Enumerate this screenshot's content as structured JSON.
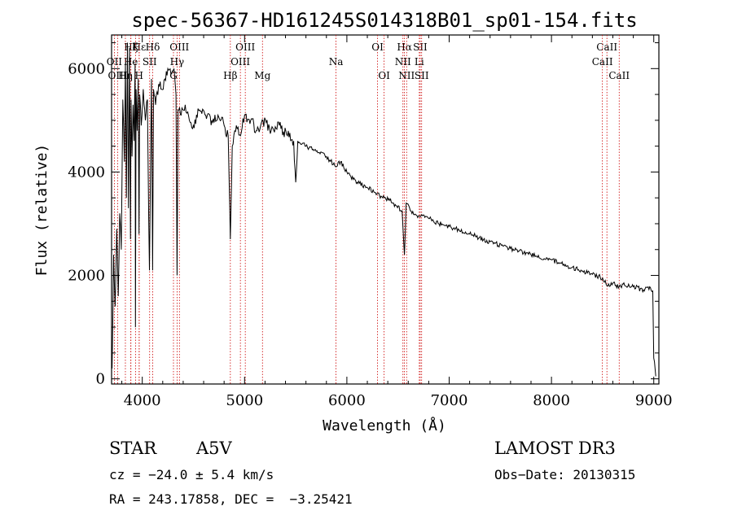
{
  "chart_data": {
    "type": "line",
    "title": "spec-56367-HD161245S014318B01_sp01-154.fits",
    "xlabel": "Wavelength (Å)",
    "ylabel": "Flux (relative)",
    "xlim": [
      3700,
      9050
    ],
    "ylim": [
      -100,
      6650
    ],
    "xticks": [
      4000,
      5000,
      6000,
      7000,
      8000,
      9000
    ],
    "yticks": [
      0,
      2000,
      4000,
      6000
    ],
    "grid": false,
    "line_color": "#000000",
    "marker_color": "#cc0000",
    "series": [
      {
        "name": "flux",
        "x": [
          3705,
          3720,
          3735,
          3750,
          3765,
          3780,
          3795,
          3810,
          3825,
          3835,
          3845,
          3855,
          3865,
          3875,
          3885,
          3890,
          3900,
          3910,
          3920,
          3930,
          3933,
          3940,
          3950,
          3960,
          3968,
          3975,
          3990,
          4010,
          4030,
          4050,
          4070,
          4090,
          4101,
          4110,
          4130,
          4160,
          4190,
          4220,
          4250,
          4280,
          4310,
          4330,
          4340,
          4350,
          4380,
          4420,
          4460,
          4500,
          4560,
          4620,
          4680,
          4740,
          4800,
          4840,
          4861,
          4880,
          4920,
          4960,
          5000,
          5060,
          5120,
          5180,
          5260,
          5340,
          5420,
          5480,
          5500,
          5520,
          5600,
          5700,
          5800,
          5890,
          5940,
          6000,
          6100,
          6200,
          6280,
          6350,
          6420,
          6480,
          6540,
          6563,
          6580,
          6620,
          6700,
          6800,
          6900,
          7000,
          7200,
          7400,
          7600,
          7800,
          8000,
          8200,
          8400,
          8500,
          8542,
          8600,
          8662,
          8700,
          8800,
          8900,
          8960,
          8990,
          9000,
          9020
        ],
        "y": [
          200,
          2400,
          1400,
          2900,
          1600,
          3200,
          2500,
          5400,
          4200,
          6100,
          3500,
          6500,
          3300,
          6400,
          2700,
          5400,
          4300,
          5300,
          4600,
          6100,
          1000,
          5600,
          4800,
          5800,
          2800,
          5500,
          4900,
          5600,
          5000,
          5400,
          2100,
          5800,
          2100,
          5600,
          5300,
          5700,
          5600,
          5800,
          6000,
          5900,
          6000,
          5500,
          2000,
          5200,
          5100,
          5300,
          5000,
          4900,
          5200,
          5100,
          5000,
          5100,
          4900,
          4700,
          2700,
          4500,
          4900,
          4700,
          5100,
          5000,
          4800,
          5000,
          4800,
          4900,
          4700,
          4600,
          3800,
          4600,
          4500,
          4400,
          4300,
          4100,
          4200,
          4000,
          3800,
          3700,
          3600,
          3500,
          3450,
          3350,
          3250,
          2400,
          3400,
          3250,
          3150,
          3100,
          3000,
          2950,
          2800,
          2650,
          2520,
          2400,
          2300,
          2150,
          2020,
          1950,
          1800,
          1850,
          1780,
          1830,
          1780,
          1720,
          1780,
          1700,
          400,
          50
        ]
      }
    ],
    "line_markers": [
      {
        "name": "Hε",
        "wavelength": 3970,
        "row": 1
      },
      {
        "name": "OII",
        "wavelength": 3727,
        "row": 2
      },
      {
        "name": "OIII",
        "wavelength": 3760,
        "row": 3
      },
      {
        "name": "Hζ",
        "wavelength": 3889,
        "row": 1
      },
      {
        "name": "He",
        "wavelength": 3888,
        "row": 2
      },
      {
        "name": "Hη",
        "wavelength": 3835,
        "row": 3
      },
      {
        "name": "K",
        "wavelength": 3934,
        "row": 1
      },
      {
        "name": "SII",
        "wavelength": 4072,
        "row": 2
      },
      {
        "name": "H",
        "wavelength": 3969,
        "row": 3
      },
      {
        "name": "Hδ",
        "wavelength": 4102,
        "row": 1
      },
      {
        "name": "OIII",
        "wavelength": 4363,
        "row": 1
      },
      {
        "name": "Hγ",
        "wavelength": 4340,
        "row": 2
      },
      {
        "name": "G",
        "wavelength": 4305,
        "row": 3
      },
      {
        "name": "Hβ",
        "wavelength": 4861,
        "row": 3
      },
      {
        "name": "OIII",
        "wavelength": 5007,
        "row": 1
      },
      {
        "name": "OIII",
        "wavelength": 4959,
        "row": 2
      },
      {
        "name": "Mg",
        "wavelength": 5175,
        "row": 3
      },
      {
        "name": "Na",
        "wavelength": 5894,
        "row": 2
      },
      {
        "name": "OI",
        "wavelength": 6300,
        "row": 1
      },
      {
        "name": "OI",
        "wavelength": 6364,
        "row": 3
      },
      {
        "name": "Hα",
        "wavelength": 6563,
        "row": 1
      },
      {
        "name": "NII",
        "wavelength": 6548,
        "row": 2
      },
      {
        "name": "NII",
        "wavelength": 6584,
        "row": 3
      },
      {
        "name": "SII",
        "wavelength": 6717,
        "row": 1
      },
      {
        "name": "Li",
        "wavelength": 6708,
        "row": 2
      },
      {
        "name": "SII",
        "wavelength": 6731,
        "row": 3
      },
      {
        "name": "CaII",
        "wavelength": 8542,
        "row": 1
      },
      {
        "name": "CaII",
        "wavelength": 8498,
        "row": 2
      },
      {
        "name": "CaII",
        "wavelength": 8662,
        "row": 3
      }
    ]
  },
  "info": {
    "object_type": "STAR",
    "subclass": "A5V",
    "survey": "LAMOST DR3",
    "cz": "cz = −24.0 ± 5.4 km/s",
    "obs_date": "Obs−Date: 20130315",
    "coords": "RA = 243.17858, DEC =  −3.25421"
  }
}
